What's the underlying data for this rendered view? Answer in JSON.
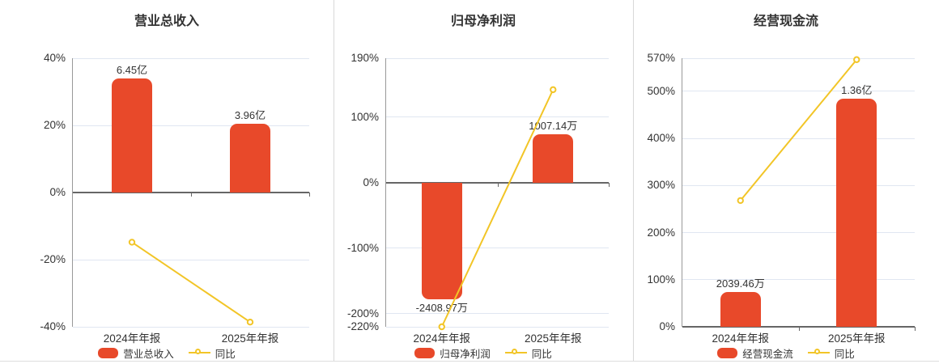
{
  "colors": {
    "bar": "#e8492a",
    "line": "#f2c527",
    "grid": "#e0e6f1",
    "zero_axis": "#666666",
    "y_axis_line": "#999999",
    "text": "#333333",
    "divider": "#d8d8d8"
  },
  "chart_data": [
    {
      "type": "bar",
      "combo": "bar+line",
      "title": "营业总收入",
      "categories": [
        "2024年年报",
        "2025年年报"
      ],
      "series": [
        {
          "name": "营业总收入",
          "type": "bar",
          "display_values": [
            "6.45亿",
            "3.96亿"
          ],
          "plotted_pct": [
            34,
            20.6
          ]
        },
        {
          "name": "同比",
          "type": "line",
          "values_pct": [
            -14.8,
            -38.6
          ]
        }
      ],
      "y_axis": {
        "min": -40,
        "max": 40,
        "tick_values": [
          40,
          20,
          0,
          -20,
          -40
        ],
        "tick_labels": [
          "40%",
          "20%",
          "0%",
          "-20%",
          "-40%"
        ]
      },
      "legend": [
        {
          "label": "营业总收入",
          "marker": "bar"
        },
        {
          "label": "同比",
          "marker": "line"
        }
      ],
      "grid": true,
      "legend_position": "bottom"
    },
    {
      "type": "bar",
      "combo": "bar+line",
      "title": "归母净利润",
      "categories": [
        "2024年年报",
        "2025年年报"
      ],
      "series": [
        {
          "name": "归母净利润",
          "type": "bar",
          "display_values": [
            "-2408.97万",
            "1007.14万"
          ],
          "plotted_pct": [
            -178,
            74.4
          ]
        },
        {
          "name": "同比",
          "type": "line",
          "values_pct": [
            -220,
            142
          ]
        }
      ],
      "y_axis": {
        "min": -220,
        "max": 190,
        "tick_values": [
          190,
          100,
          0,
          -100,
          -200,
          -220
        ],
        "tick_labels": [
          "190%",
          "100%",
          "0%",
          "-100%",
          "-200%",
          "-220%"
        ]
      },
      "legend": [
        {
          "label": "归母净利润",
          "marker": "bar"
        },
        {
          "label": "同比",
          "marker": "line"
        }
      ],
      "grid": true,
      "legend_position": "bottom"
    },
    {
      "type": "bar",
      "combo": "bar+line",
      "title": "经营现金流",
      "categories": [
        "2024年年报",
        "2025年年报"
      ],
      "series": [
        {
          "name": "经营现金流",
          "type": "bar",
          "display_values": [
            "2039.46万",
            "1.36亿"
          ],
          "plotted_pct": [
            73.5,
            485
          ]
        },
        {
          "name": "同比",
          "type": "line",
          "values_pct": [
            268,
            567
          ]
        }
      ],
      "y_axis": {
        "min": 0,
        "max": 570,
        "tick_values": [
          570,
          500,
          400,
          300,
          200,
          100,
          0
        ],
        "tick_labels": [
          "570%",
          "500%",
          "400%",
          "300%",
          "200%",
          "100%",
          "0%"
        ]
      },
      "legend": [
        {
          "label": "经营现金流",
          "marker": "bar"
        },
        {
          "label": "同比",
          "marker": "line"
        }
      ],
      "grid": true,
      "legend_position": "bottom"
    }
  ]
}
